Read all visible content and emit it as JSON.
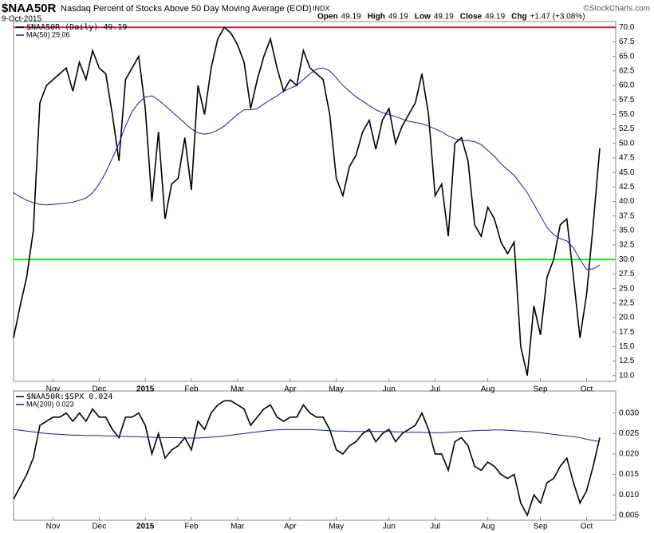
{
  "header": {
    "symbol": "$NAA50R",
    "description": "Nasdaq Percent of Stocks Above 50 Day Moving Average (EOD)",
    "exchange": "INDX",
    "date": "9-Oct-2015",
    "quote": [
      {
        "label": "Open",
        "value": "49.19"
      },
      {
        "label": "High",
        "value": "49.19"
      },
      {
        "label": "Low",
        "value": "49.19"
      },
      {
        "label": "Close",
        "value": "49.19"
      },
      {
        "label": "Chg",
        "value": "+1.47 (+3.08%)"
      }
    ],
    "watermark": "©StockCharts.com"
  },
  "chart_data": [
    {
      "type": "line",
      "categories": [
        null,
        null,
        null,
        null,
        null,
        null,
        "Nov",
        null,
        null,
        null,
        null,
        null,
        null,
        "Dec",
        null,
        null,
        null,
        null,
        null,
        null,
        "2015",
        null,
        null,
        null,
        null,
        null,
        null,
        "Feb",
        null,
        null,
        null,
        null,
        null,
        null,
        "Mar",
        null,
        null,
        null,
        null,
        null,
        null,
        null,
        "Apr",
        null,
        null,
        null,
        null,
        null,
        null,
        "May",
        null,
        null,
        null,
        null,
        null,
        null,
        null,
        "Jun",
        null,
        null,
        null,
        null,
        null,
        null,
        "Jul",
        null,
        null,
        null,
        null,
        null,
        null,
        null,
        "Aug",
        null,
        null,
        null,
        null,
        null,
        null,
        null,
        "Sep",
        null,
        null,
        null,
        null,
        null,
        null,
        "Oct",
        null,
        null
      ],
      "series": [
        {
          "name": "$NAA50R (Daily) 49.19",
          "color": "#000000",
          "values": [
            16.5,
            22,
            27,
            35,
            57,
            60,
            61,
            62,
            63,
            59,
            64,
            61,
            66,
            63,
            62,
            55,
            47,
            61,
            63,
            65,
            56,
            40,
            52,
            37,
            43,
            44,
            51,
            42,
            60,
            55,
            63,
            68,
            70,
            69,
            67,
            64,
            56,
            61,
            65,
            68,
            63,
            59,
            61,
            60,
            66,
            63,
            62,
            61,
            55,
            44,
            41,
            46,
            48,
            52,
            54,
            49,
            54,
            56,
            50,
            53,
            55,
            57,
            62,
            55,
            41,
            43,
            34,
            50,
            51,
            47,
            36,
            34,
            39,
            37,
            33,
            31,
            33,
            15,
            10,
            22,
            17,
            27,
            30,
            36,
            37,
            27,
            16.5,
            24,
            36,
            49.19
          ]
        },
        {
          "name": "MA(50) 29.06",
          "color": "#1a1a9c",
          "values": [
            41.5,
            40.8,
            40.2,
            39.8,
            39.5,
            39.4,
            39.5,
            39.6,
            39.7,
            39.9,
            40.2,
            40.6,
            41.5,
            43,
            45,
            47.5,
            50,
            53,
            55.5,
            57,
            58,
            58.2,
            57.5,
            56.5,
            55.5,
            54.5,
            53.5,
            52.5,
            51.8,
            51.6,
            51.8,
            52.3,
            53,
            54,
            55,
            55.8,
            55.8,
            56,
            56.8,
            57.5,
            58.2,
            59,
            59.5,
            60,
            61,
            62,
            62.8,
            63,
            62.5,
            61.3,
            60,
            59,
            58,
            57.3,
            56.5,
            55.8,
            55.3,
            55,
            54.6,
            54.2,
            53.8,
            53.6,
            53.4,
            53,
            52.5,
            52,
            51.3,
            50.8,
            50.5,
            50.5,
            50.3,
            49.8,
            48.8,
            47.8,
            46.5,
            45.5,
            44.5,
            43,
            41.5,
            39.5,
            37.5,
            35.5,
            34.3,
            33.6,
            33.2,
            32,
            30,
            28.3,
            28.4,
            29.06
          ]
        }
      ],
      "reference_lines": [
        {
          "value": 70,
          "color": "#c0284a"
        },
        {
          "value": 30,
          "color": "#22e022"
        }
      ],
      "ylim": [
        9,
        71
      ],
      "yticks": [
        {
          "value": 10,
          "label": "10.0"
        },
        12.5,
        {
          "value": 15,
          "label": "15.0"
        },
        17.5,
        {
          "value": 20,
          "label": "20.0"
        },
        22.5,
        {
          "value": 25,
          "label": "25.0"
        },
        27.5,
        {
          "value": 30,
          "label": "30.0"
        },
        32.5,
        {
          "value": 35,
          "label": "35.0"
        },
        37.5,
        {
          "value": 40,
          "label": "40.0"
        },
        42.5,
        {
          "value": 45,
          "label": "45.0"
        },
        47.5,
        {
          "value": 50,
          "label": "50.0"
        },
        52.5,
        {
          "value": 55,
          "label": "55.0"
        },
        57.5,
        {
          "value": 60,
          "label": "60.0"
        },
        62.5,
        {
          "value": 65,
          "label": "65.0"
        },
        67.5,
        {
          "value": 70,
          "label": "70.0"
        }
      ],
      "grid": false,
      "legend": "top-left"
    },
    {
      "type": "line",
      "categories": [
        null,
        null,
        null,
        null,
        null,
        null,
        "Nov",
        null,
        null,
        null,
        null,
        null,
        null,
        "Dec",
        null,
        null,
        null,
        null,
        null,
        null,
        "2015",
        null,
        null,
        null,
        null,
        null,
        null,
        "Feb",
        null,
        null,
        null,
        null,
        null,
        null,
        "Mar",
        null,
        null,
        null,
        null,
        null,
        null,
        null,
        "Apr",
        null,
        null,
        null,
        null,
        null,
        null,
        "May",
        null,
        null,
        null,
        null,
        null,
        null,
        null,
        "Jun",
        null,
        null,
        null,
        null,
        null,
        null,
        "Jul",
        null,
        null,
        null,
        null,
        null,
        null,
        null,
        "Aug",
        null,
        null,
        null,
        null,
        null,
        null,
        null,
        "Sep",
        null,
        null,
        null,
        null,
        null,
        null,
        "Oct",
        null,
        null
      ],
      "series": [
        {
          "name": "$NAA50R:$SPX 0.024",
          "color": "#000000",
          "values": [
            0.009,
            0.012,
            0.015,
            0.019,
            0.027,
            0.028,
            0.029,
            0.029,
            0.03,
            0.028,
            0.03,
            0.028,
            0.031,
            0.029,
            0.029,
            0.026,
            0.024,
            0.029,
            0.029,
            0.03,
            0.027,
            0.02,
            0.025,
            0.019,
            0.021,
            0.022,
            0.024,
            0.021,
            0.028,
            0.026,
            0.03,
            0.032,
            0.033,
            0.033,
            0.032,
            0.031,
            0.027,
            0.029,
            0.031,
            0.032,
            0.029,
            0.028,
            0.029,
            0.029,
            0.032,
            0.03,
            0.029,
            0.029,
            0.026,
            0.021,
            0.02,
            0.022,
            0.023,
            0.025,
            0.026,
            0.023,
            0.025,
            0.026,
            0.023,
            0.025,
            0.026,
            0.027,
            0.03,
            0.026,
            0.02,
            0.02,
            0.016,
            0.023,
            0.024,
            0.022,
            0.017,
            0.016,
            0.018,
            0.017,
            0.015,
            0.014,
            0.015,
            0.008,
            0.005,
            0.01,
            0.008,
            0.013,
            0.014,
            0.017,
            0.019,
            0.013,
            0.008,
            0.011,
            0.017,
            0.024
          ]
        },
        {
          "name": "MA(200) 0.023",
          "color": "#1a1a9c",
          "values": [
            0.026,
            0.0258,
            0.0256,
            0.0254,
            0.0252,
            0.025,
            0.0249,
            0.0248,
            0.0247,
            0.0246,
            0.0246,
            0.0245,
            0.0245,
            0.0245,
            0.0244,
            0.0244,
            0.0243,
            0.0243,
            0.0242,
            0.0242,
            0.0241,
            0.0241,
            0.024,
            0.024,
            0.024,
            0.024,
            0.0239,
            0.0239,
            0.0239,
            0.024,
            0.0241,
            0.0242,
            0.0244,
            0.0246,
            0.0248,
            0.025,
            0.0252,
            0.0254,
            0.0256,
            0.0258,
            0.0259,
            0.026,
            0.026,
            0.026,
            0.026,
            0.026,
            0.0259,
            0.0258,
            0.0257,
            0.0256,
            0.0256,
            0.0255,
            0.0255,
            0.0255,
            0.0255,
            0.0255,
            0.0255,
            0.0255,
            0.0254,
            0.0254,
            0.0253,
            0.0253,
            0.0253,
            0.0252,
            0.0252,
            0.0252,
            0.0253,
            0.0254,
            0.0255,
            0.0256,
            0.0257,
            0.0258,
            0.0258,
            0.0259,
            0.0259,
            0.0258,
            0.0257,
            0.0256,
            0.0255,
            0.0254,
            0.0252,
            0.025,
            0.0248,
            0.0246,
            0.0244,
            0.0242,
            0.024,
            0.0236,
            0.0233,
            0.023
          ]
        }
      ],
      "ylim": [
        0.0038,
        0.0354
      ],
      "yticks": [
        0.005,
        {
          "value": 0.01,
          "label": "0.010"
        },
        0.015,
        {
          "value": 0.02,
          "label": "0.020"
        },
        0.025,
        {
          "value": 0.03,
          "label": "0.030"
        }
      ],
      "grid": false,
      "legend": "top-left"
    }
  ]
}
